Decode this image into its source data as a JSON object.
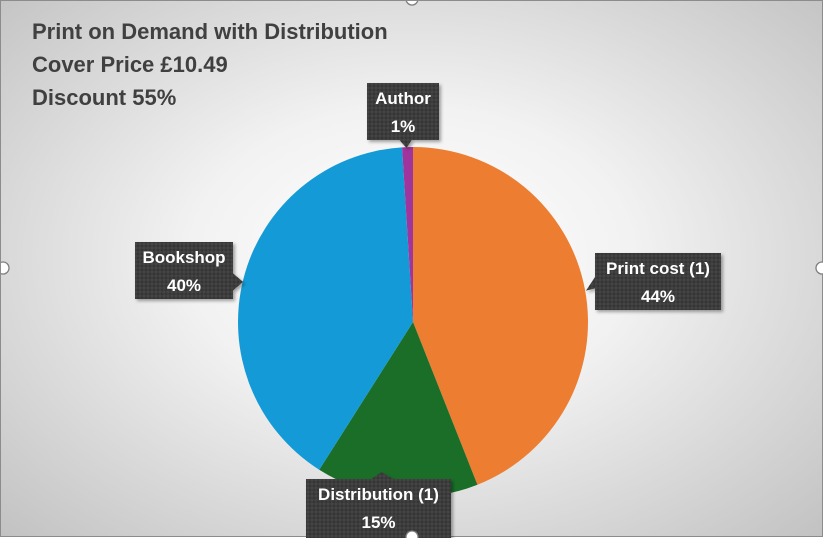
{
  "title_lines": [
    "Print on Demand with Distribution",
    "Cover Price £10.49",
    "Discount 55%"
  ],
  "chart_data": {
    "type": "pie",
    "title": "Print on Demand with Distribution",
    "subtitle": [
      "Cover Price £10.49",
      "Discount 55%"
    ],
    "start_angle_deg": 0,
    "direction": "clockwise",
    "slices": [
      {
        "label": "Print cost (1)",
        "value": 44,
        "value_label": "44%",
        "color": "#ED7D31"
      },
      {
        "label": "Distribution (1)",
        "value": 15,
        "value_label": "15%",
        "color": "#1A6E28"
      },
      {
        "label": "Bookshop",
        "value": 40,
        "value_label": "40%",
        "color": "#149BD7"
      },
      {
        "label": "Author",
        "value": 1,
        "value_label": "1%",
        "color": "#A0359D"
      }
    ],
    "data_labels": "callouts"
  }
}
